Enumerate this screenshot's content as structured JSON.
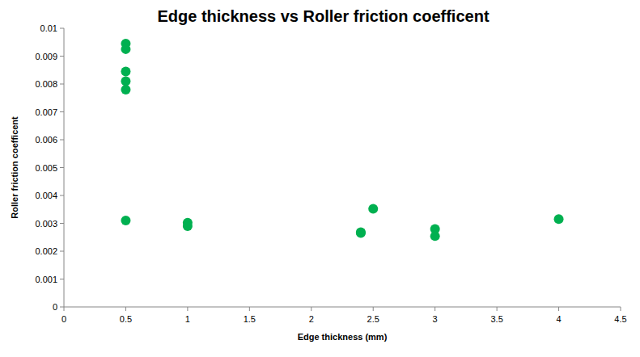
{
  "chart_data": {
    "type": "scatter",
    "title": "Edge thickness vs Roller friction coefficent",
    "x_label": "Edge thickness (mm)",
    "y_label": "Roller friction coefficent",
    "x": [
      0.5,
      0.5,
      0.5,
      0.5,
      0.5,
      0.5,
      1,
      1,
      2.4,
      2.4,
      2.5,
      3,
      3,
      4
    ],
    "values": [
      0.00945,
      0.00925,
      0.00845,
      0.0081,
      0.0078,
      0.0031,
      0.00302,
      0.0029,
      0.00268,
      0.00265,
      0.00352,
      0.0028,
      0.00254,
      0.00315
    ],
    "color": "#00b050",
    "marker": "circle",
    "xlim": [
      0,
      4.5
    ],
    "xticks": [
      0,
      0.5,
      1,
      1.5,
      2,
      2.5,
      3,
      3.5,
      4,
      4.5
    ],
    "ylim": [
      0,
      0.01
    ],
    "yticks": [
      0,
      0.001,
      0.002,
      0.003,
      0.004,
      0.005,
      0.006,
      0.007,
      0.008,
      0.009,
      0.01
    ],
    "grid": false
  }
}
